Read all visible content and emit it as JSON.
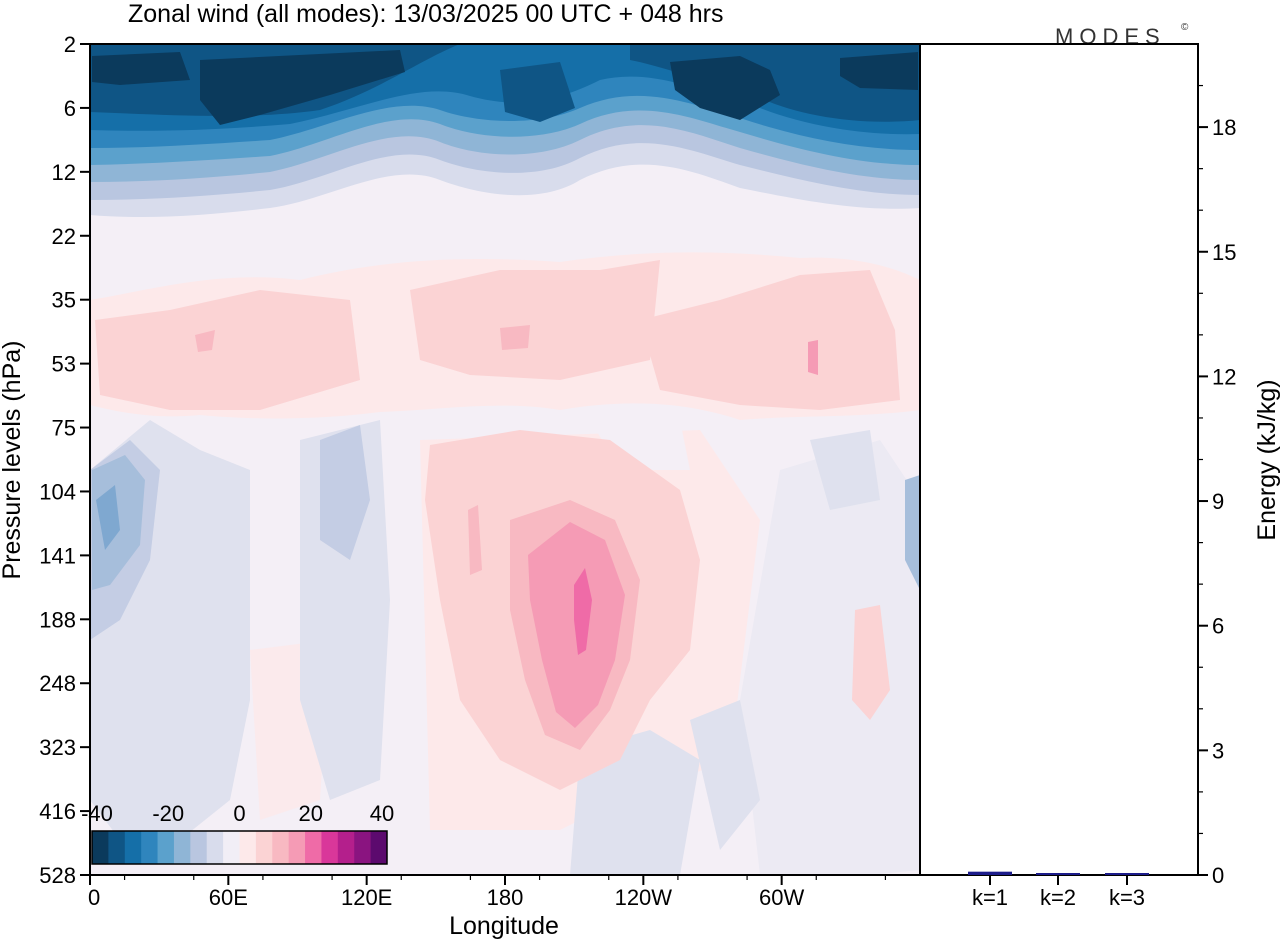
{
  "chart_data": [
    {
      "type": "heatmap",
      "title": "Zonal wind (all modes):  13/03/2025  00 UTC  + 048 hrs",
      "xlabel": "Longitude",
      "ylabel": "Pressure levels (hPa)",
      "x_ticks": [
        "0",
        "60E",
        "120E",
        "180",
        "120W",
        "60W"
      ],
      "y_ticks": [
        "2",
        "6",
        "12",
        "22",
        "35",
        "53",
        "75",
        "104",
        "141",
        "188",
        "248",
        "323",
        "416",
        "528"
      ],
      "y_scale": "log-pressure (top 2 hPa, bottom 528 hPa)",
      "colorbar": {
        "labels": [
          "-40",
          "-20",
          "0",
          "20",
          "40"
        ],
        "range": [
          -40,
          40
        ],
        "colors": [
          "#0b3a5c",
          "#0f5585",
          "#156fa8",
          "#2f85bd",
          "#5ba1cc",
          "#8fb5d6",
          "#b9c6e0",
          "#d8dcec",
          "#f1eef6",
          "#fde9ea",
          "#fbd3d4",
          "#f8b9c2",
          "#f59bb5",
          "#ef6ba7",
          "#d9379a",
          "#b41f8c",
          "#8a1480",
          "#5c0a6e"
        ]
      },
      "bands": [
        {
          "p_top": 2,
          "p_bottom": 12,
          "description": "strong easterlies",
          "value_range": [
            -35,
            -15
          ]
        },
        {
          "p_top": 12,
          "p_bottom": 22,
          "value_range": [
            -15,
            -3
          ]
        },
        {
          "p_top": 22,
          "p_bottom": 80,
          "value_range": [
            0,
            8
          ]
        },
        {
          "p_top": 80,
          "p_bottom": 528,
          "value_range": [
            -8,
            0
          ]
        }
      ],
      "jet_core": {
        "lon_range": [
          "155W",
          "110W"
        ],
        "p_range": [
          130,
          330
        ],
        "max_value": 30
      }
    },
    {
      "type": "bar",
      "ylabel": "Energy (kJ/kg)",
      "ylim": [
        0,
        20
      ],
      "y_ticks": [
        "0",
        "3",
        "6",
        "9",
        "12",
        "15",
        "18"
      ],
      "categories": [
        "k=1",
        "k=2",
        "k=3"
      ],
      "values": [
        0.08,
        0.02,
        0.02
      ]
    }
  ],
  "branding": {
    "logo": "MODES",
    "mark": "©"
  }
}
